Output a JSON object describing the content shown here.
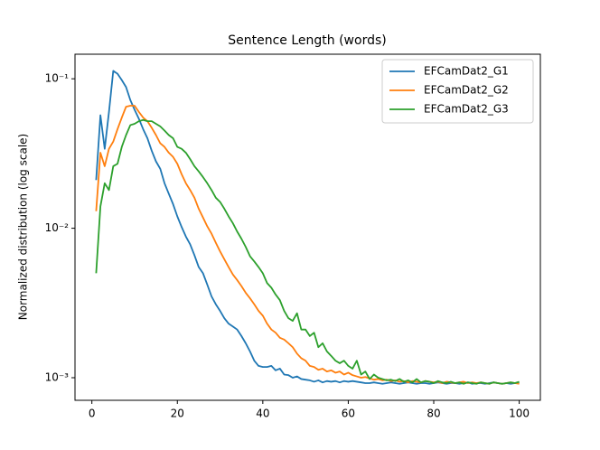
{
  "chart_data": {
    "type": "line",
    "title": "Sentence Length (words)",
    "y_label": "Normalized distribution (log scale)",
    "yscale": "log",
    "legend": "upper right",
    "xlim": [
      -3.95,
      104.95
    ],
    "xticks": [
      0,
      20,
      40,
      60,
      80,
      100
    ],
    "ylim": [
      0.000706,
      0.146
    ],
    "yticks": [
      {
        "value": 0.001,
        "label": "10⁻³"
      },
      {
        "value": 0.01,
        "label": "10⁻²"
      },
      {
        "value": 0.1,
        "label": "10⁻¹"
      }
    ],
    "x": [
      1,
      2,
      3,
      4,
      5,
      6,
      7,
      8,
      9,
      10,
      11,
      12,
      13,
      14,
      15,
      16,
      17,
      18,
      19,
      20,
      21,
      22,
      23,
      24,
      25,
      26,
      27,
      28,
      29,
      30,
      31,
      32,
      33,
      34,
      35,
      36,
      37,
      38,
      39,
      40,
      41,
      42,
      43,
      44,
      45,
      46,
      47,
      48,
      49,
      50,
      51,
      52,
      53,
      54,
      55,
      56,
      57,
      58,
      59,
      60,
      61,
      62,
      63,
      64,
      65,
      66,
      67,
      68,
      69,
      70,
      71,
      72,
      73,
      74,
      75,
      76,
      77,
      78,
      79,
      80,
      81,
      82,
      83,
      84,
      85,
      86,
      87,
      88,
      89,
      90,
      91,
      92,
      93,
      94,
      95,
      96,
      97,
      98,
      99,
      100
    ],
    "series": [
      {
        "name": "EFCamDat2_G1",
        "color": "#1f77b4",
        "values": [
          0.021,
          0.057,
          0.034,
          0.06,
          0.113,
          0.108,
          0.098,
          0.088,
          0.072,
          0.062,
          0.054,
          0.046,
          0.04,
          0.033,
          0.028,
          0.025,
          0.02,
          0.017,
          0.0145,
          0.012,
          0.0102,
          0.0088,
          0.0078,
          0.0066,
          0.0055,
          0.005,
          0.0042,
          0.0035,
          0.0031,
          0.0028,
          0.0025,
          0.0023,
          0.0022,
          0.0021,
          0.0019,
          0.0017,
          0.0015,
          0.0013,
          0.0012,
          0.00118,
          0.00118,
          0.0012,
          0.00112,
          0.00115,
          0.00105,
          0.00104,
          0.001,
          0.00102,
          0.00098,
          0.00097,
          0.00096,
          0.00094,
          0.00096,
          0.00093,
          0.00095,
          0.00094,
          0.00095,
          0.00093,
          0.00095,
          0.00094,
          0.00095,
          0.00094,
          0.00093,
          0.00092,
          0.00092,
          0.00093,
          0.00092,
          0.00091,
          0.00092,
          0.00093,
          0.00092,
          0.00091,
          0.00092,
          0.00093,
          0.00092,
          0.00091,
          0.00092,
          0.00092,
          0.00091,
          0.00092,
          0.00093,
          0.00092,
          0.00091,
          0.00092,
          0.00092,
          0.00091,
          0.00092,
          0.00093,
          0.00091,
          0.00092,
          0.00092,
          0.00091,
          0.00092,
          0.00093,
          0.00092,
          0.00091,
          0.00092,
          0.00091,
          0.00092,
          0.00093
        ]
      },
      {
        "name": "EFCamDat2_G2",
        "color": "#ff7f0e",
        "values": [
          0.013,
          0.032,
          0.026,
          0.034,
          0.038,
          0.046,
          0.055,
          0.065,
          0.066,
          0.066,
          0.06,
          0.055,
          0.052,
          0.047,
          0.042,
          0.037,
          0.035,
          0.032,
          0.03,
          0.027,
          0.023,
          0.02,
          0.018,
          0.016,
          0.0135,
          0.0118,
          0.0103,
          0.0092,
          0.008,
          0.007,
          0.0062,
          0.0055,
          0.0049,
          0.0045,
          0.0041,
          0.0037,
          0.0034,
          0.0031,
          0.0028,
          0.0026,
          0.0023,
          0.0021,
          0.002,
          0.00185,
          0.0018,
          0.0017,
          0.0016,
          0.00145,
          0.00135,
          0.0013,
          0.0012,
          0.00118,
          0.00113,
          0.00115,
          0.0011,
          0.00112,
          0.00108,
          0.0011,
          0.00105,
          0.00108,
          0.00104,
          0.00102,
          0.001,
          0.00101,
          0.00099,
          0.00097,
          0.00098,
          0.00096,
          0.00097,
          0.00095,
          0.00096,
          0.00094,
          0.00095,
          0.00093,
          0.00095,
          0.00094,
          0.00093,
          0.00095,
          0.00094,
          0.00093,
          0.00094,
          0.00092,
          0.00094,
          0.00093,
          0.00092,
          0.00093,
          0.00094,
          0.00092,
          0.00093,
          0.00092,
          0.00093,
          0.00092,
          0.00091,
          0.00093,
          0.00092,
          0.00091,
          0.00092,
          0.00093,
          0.00092,
          0.00091
        ]
      },
      {
        "name": "EFCamDat2_G3",
        "color": "#2ca02c",
        "values": [
          0.005,
          0.014,
          0.02,
          0.018,
          0.026,
          0.027,
          0.035,
          0.042,
          0.049,
          0.05,
          0.052,
          0.053,
          0.052,
          0.052,
          0.05,
          0.048,
          0.045,
          0.042,
          0.04,
          0.035,
          0.034,
          0.032,
          0.029,
          0.026,
          0.024,
          0.022,
          0.02,
          0.018,
          0.016,
          0.015,
          0.0135,
          0.012,
          0.0108,
          0.0095,
          0.0085,
          0.0075,
          0.0065,
          0.006,
          0.0055,
          0.005,
          0.0043,
          0.004,
          0.0036,
          0.0033,
          0.0028,
          0.0025,
          0.0024,
          0.0027,
          0.0021,
          0.0021,
          0.0019,
          0.002,
          0.0016,
          0.0017,
          0.0015,
          0.0014,
          0.0013,
          0.00125,
          0.0013,
          0.0012,
          0.00115,
          0.0013,
          0.00105,
          0.0011,
          0.00098,
          0.00105,
          0.001,
          0.00098,
          0.00096,
          0.00097,
          0.00095,
          0.00098,
          0.00094,
          0.00096,
          0.00093,
          0.00098,
          0.00093,
          0.00095,
          0.00094,
          0.00092,
          0.00095,
          0.00093,
          0.00092,
          0.00094,
          0.00092,
          0.00093,
          0.00091,
          0.00093,
          0.00092,
          0.00091,
          0.00093,
          0.00092,
          0.00091,
          0.00093,
          0.00092,
          0.00091,
          0.00092,
          0.00093,
          0.00092,
          0.00094
        ]
      }
    ]
  }
}
